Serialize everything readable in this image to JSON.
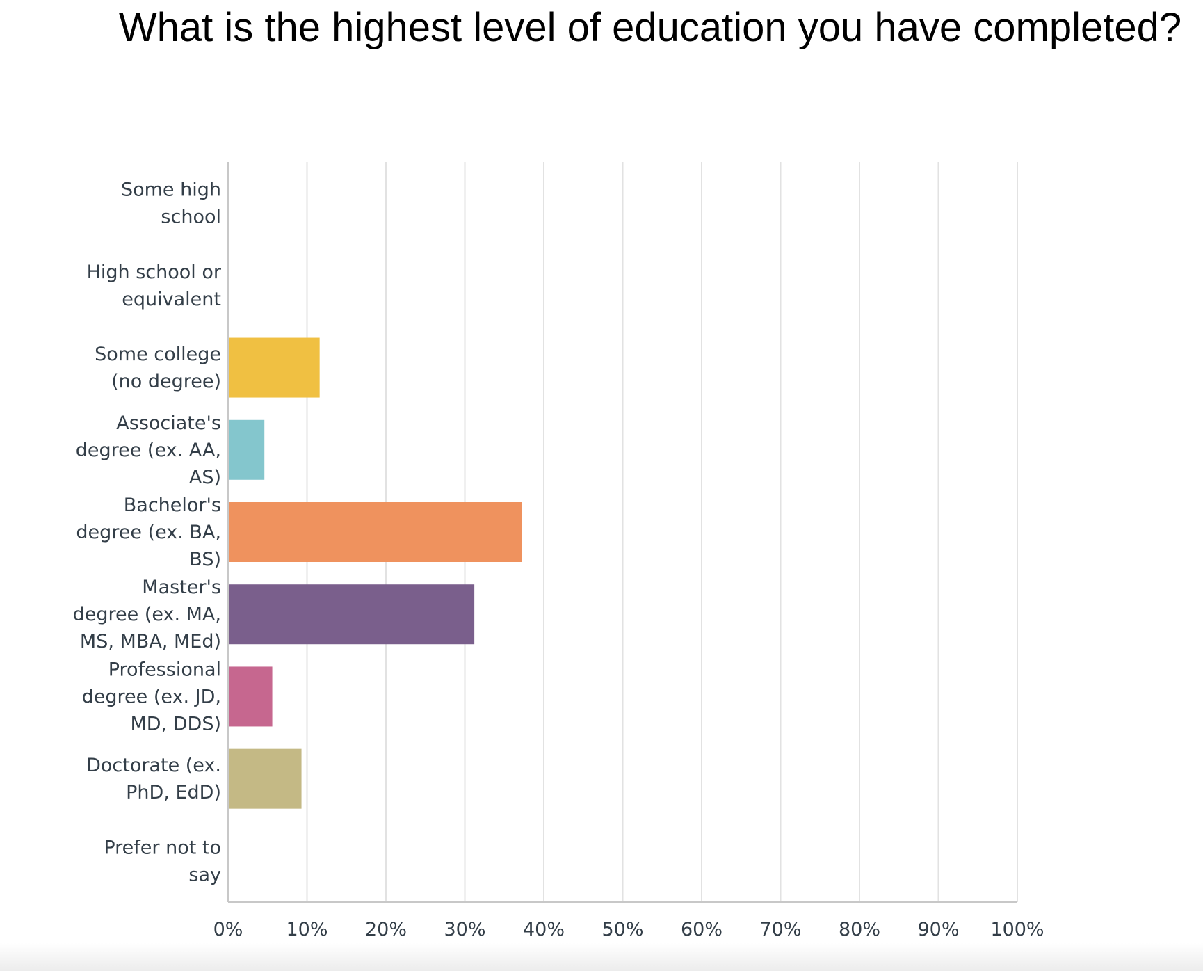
{
  "chart_data": {
    "type": "bar",
    "orientation": "horizontal",
    "title": "What is the highest level of education you have completed?",
    "categories": [
      [
        "Some high",
        "school"
      ],
      [
        "High school or",
        "equivalent"
      ],
      [
        "Some college",
        "(no degree)"
      ],
      [
        "Associate's",
        "degree (ex. AA,",
        "AS)"
      ],
      [
        "Bachelor's",
        "degree (ex. BA,",
        "BS)"
      ],
      [
        "Master's",
        "degree (ex. MA,",
        "MS, MBA, MEd)"
      ],
      [
        "Professional",
        "degree (ex. JD,",
        "MD, DDS)"
      ],
      [
        "Doctorate (ex.",
        "PhD, EdD)"
      ],
      [
        "Prefer not to",
        "say"
      ]
    ],
    "values": [
      0,
      0,
      11.6,
      4.6,
      37.2,
      31.2,
      5.6,
      9.3,
      0
    ],
    "colors": [
      "#f0c042",
      "#f0c042",
      "#f0c042",
      "#84c6cd",
      "#ef925e",
      "#7a5f8c",
      "#c6678f",
      "#c4b985",
      "#c4b985"
    ],
    "xlim": [
      0,
      100
    ],
    "x_ticks": [
      "0%",
      "10%",
      "20%",
      "30%",
      "40%",
      "50%",
      "60%",
      "70%",
      "80%",
      "90%",
      "100%"
    ],
    "grid": true,
    "gridline_color": "#e2e2e2",
    "axis_color": "#c8c8c8"
  }
}
